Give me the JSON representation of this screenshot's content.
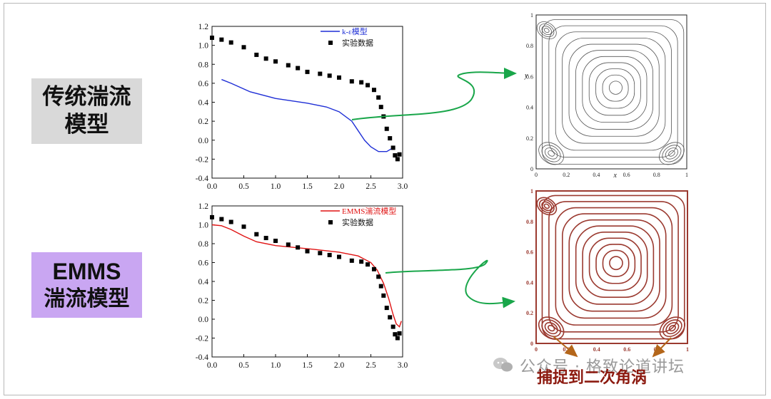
{
  "labels": {
    "traditional": "传统湍流\n模型",
    "emms_line1": "EMMS",
    "emms_line2": "湍流模型"
  },
  "caption": "捕捉到二次角涡",
  "watermark": "公众号 · 格致论道讲坛",
  "colors": {
    "blue_model": "#1f2fd6",
    "red_model": "#e01414",
    "arrow_green": "#19a64a",
    "arrow_orange": "#b4661a",
    "stream_gray": "#555555",
    "stream_red": "#9b3a30"
  },
  "chart_data": [
    {
      "type": "line",
      "xlim": [
        0,
        3.0
      ],
      "ylim": [
        -0.4,
        1.2
      ],
      "xticks": [
        "0.0",
        "0.5",
        "1.0",
        "1.5",
        "2.0",
        "2.5",
        "3.0"
      ],
      "yticks": [
        "-0.4",
        "-0.2",
        "0.0",
        "0.2",
        "0.4",
        "0.6",
        "0.8",
        "1.0",
        "1.2"
      ],
      "legend_position": "top-right",
      "series": [
        {
          "name": "k-ε模型",
          "kind": "line",
          "color": "#1f2fd6",
          "x": [
            0.15,
            0.3,
            0.6,
            1.0,
            1.5,
            1.8,
            2.0,
            2.2,
            2.3,
            2.4,
            2.5,
            2.62,
            2.75,
            2.85
          ],
          "y": [
            0.64,
            0.6,
            0.51,
            0.44,
            0.39,
            0.35,
            0.3,
            0.2,
            0.1,
            0.0,
            -0.07,
            -0.12,
            -0.12,
            -0.08
          ]
        },
        {
          "name": "实验数据",
          "kind": "scatter",
          "color": "#000000",
          "x": [
            0.0,
            0.15,
            0.3,
            0.5,
            0.7,
            0.85,
            1.0,
            1.2,
            1.35,
            1.5,
            1.7,
            1.85,
            2.0,
            2.2,
            2.35,
            2.45,
            2.55,
            2.62,
            2.66,
            2.7,
            2.75,
            2.8,
            2.85,
            2.88,
            2.92,
            2.95
          ],
          "y": [
            1.08,
            1.06,
            1.03,
            0.98,
            0.9,
            0.86,
            0.83,
            0.79,
            0.76,
            0.72,
            0.7,
            0.68,
            0.66,
            0.62,
            0.61,
            0.58,
            0.53,
            0.45,
            0.35,
            0.25,
            0.12,
            0.02,
            -0.08,
            -0.16,
            -0.2,
            -0.15
          ]
        }
      ]
    },
    {
      "type": "line",
      "xlim": [
        0,
        3.0
      ],
      "ylim": [
        -0.4,
        1.2
      ],
      "xticks": [
        "0.0",
        "0.5",
        "1.0",
        "1.5",
        "2.0",
        "2.5",
        "3.0"
      ],
      "yticks": [
        "-0.4",
        "-0.2",
        "0.0",
        "0.2",
        "0.4",
        "0.6",
        "0.8",
        "1.0",
        "1.2"
      ],
      "legend_position": "top-right",
      "series": [
        {
          "name": "EMMS湍流模型",
          "kind": "line",
          "color": "#e01414",
          "x": [
            0.0,
            0.15,
            0.3,
            0.5,
            0.7,
            1.0,
            1.3,
            1.6,
            2.0,
            2.3,
            2.5,
            2.6,
            2.7,
            2.78,
            2.85,
            2.9,
            2.95,
            2.98
          ],
          "y": [
            1.0,
            0.99,
            0.95,
            0.88,
            0.82,
            0.78,
            0.76,
            0.74,
            0.71,
            0.67,
            0.6,
            0.52,
            0.38,
            0.22,
            0.05,
            -0.05,
            -0.08,
            -0.02
          ]
        },
        {
          "name": "实验数据",
          "kind": "scatter",
          "color": "#000000",
          "x": [
            0.0,
            0.15,
            0.3,
            0.5,
            0.7,
            0.85,
            1.0,
            1.2,
            1.35,
            1.5,
            1.7,
            1.85,
            2.0,
            2.2,
            2.35,
            2.45,
            2.55,
            2.62,
            2.66,
            2.7,
            2.75,
            2.8,
            2.85,
            2.88,
            2.92,
            2.95
          ],
          "y": [
            1.08,
            1.06,
            1.03,
            0.98,
            0.9,
            0.86,
            0.83,
            0.79,
            0.76,
            0.72,
            0.7,
            0.68,
            0.66,
            0.62,
            0.61,
            0.58,
            0.53,
            0.45,
            0.35,
            0.25,
            0.12,
            0.02,
            -0.08,
            -0.16,
            -0.2,
            -0.15
          ]
        }
      ]
    }
  ],
  "streamline_plots": [
    {
      "xticks": [
        "0",
        "0.2",
        "0.4",
        "0.6",
        "0.8",
        "1"
      ],
      "yticks": [
        "0",
        "0.2",
        "0.4",
        "0.6",
        "0.8",
        "1"
      ],
      "xlabel": "x",
      "ylabel": "y",
      "color": "#555555"
    },
    {
      "xticks": [
        "0",
        "0.2",
        "0.4",
        "0.6",
        "0.8",
        "1"
      ],
      "yticks": [
        "0",
        "0.2",
        "0.4",
        "0.6",
        "0.8",
        "1"
      ],
      "color": "#9b3a30"
    }
  ]
}
